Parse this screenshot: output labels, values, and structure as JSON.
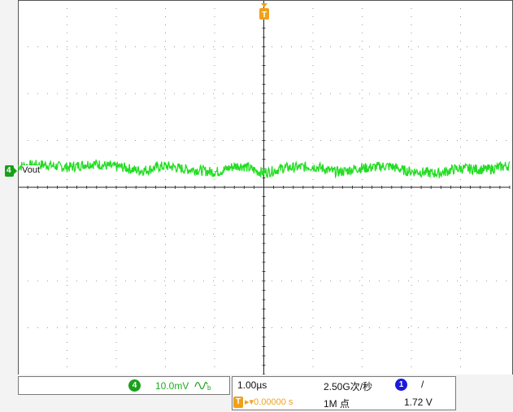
{
  "colors": {
    "trace": "#22dd22",
    "ch4": "#1aa01a",
    "ch1": "#1a1add",
    "trigger": "#f0a11a",
    "grid": "#9a9a9a",
    "axis": "#222222"
  },
  "trigger_marker": {
    "label": "T"
  },
  "channel_marker": {
    "label": "4",
    "name": "Vout"
  },
  "channel_status": {
    "channel": "4",
    "scale": "10.0mV",
    "bandwidth_icon": "bandwidth-limit-icon"
  },
  "timebase": {
    "time_per_div": "1.00µs",
    "sample_rate": "2.50G次/秒",
    "trigger_icon_label": "T",
    "trigger_position": "▸▾0.00000 s",
    "record_length": "1M 点"
  },
  "trigger_status": {
    "source": "1",
    "slope": "/",
    "level": "1.72 V"
  },
  "chart_data": {
    "type": "line",
    "series": [
      {
        "name": "Vout",
        "x_divisions": [
          0,
          0.5,
          1,
          1.5,
          2,
          2.5,
          3,
          3.5,
          4,
          4.5,
          5,
          5.5,
          6,
          6.5,
          7,
          7.5,
          8,
          8.5,
          9,
          9.5,
          10
        ],
        "y_divisions": [
          0.45,
          0.48,
          0.43,
          0.5,
          0.44,
          0.36,
          0.45,
          0.38,
          0.33,
          0.46,
          0.32,
          0.42,
          0.44,
          0.33,
          0.41,
          0.45,
          0.34,
          0.3,
          0.4,
          0.38,
          0.46
        ]
      }
    ],
    "divisions": {
      "x": 10,
      "y": 8
    },
    "grid": true
  }
}
